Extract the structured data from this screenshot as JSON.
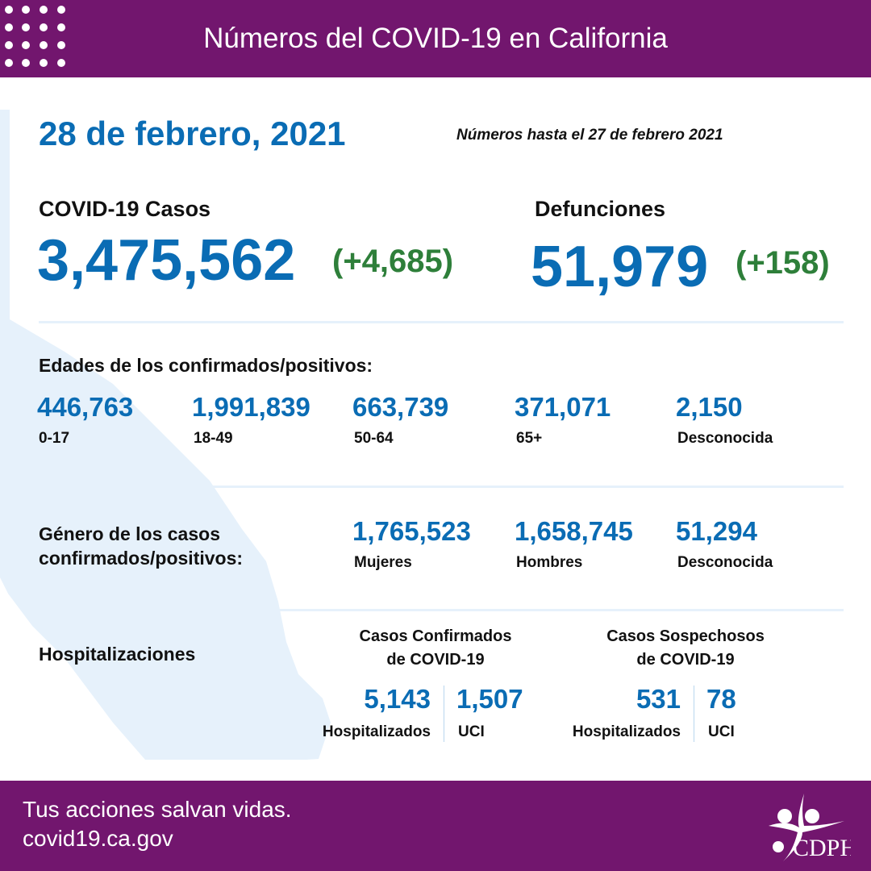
{
  "header": {
    "title": "Números del COVID-19 en California",
    "icon": "dot-grid-icon"
  },
  "date": "28 de febrero, 2021",
  "note": "Números hasta el 27 de febrero 2021",
  "cases": {
    "label": "COVID-19 Casos",
    "value": "3,475,562",
    "change": "(+4,685)"
  },
  "deaths": {
    "label": "Defunciones",
    "value": "51,979",
    "change": "(+158)"
  },
  "ages": {
    "heading": "Edades de los confirmados/positivos:",
    "items": [
      {
        "value": "446,763",
        "label": "0-17"
      },
      {
        "value": "1,991,839",
        "label": "18-49"
      },
      {
        "value": "663,739",
        "label": "50-64"
      },
      {
        "value": "371,071",
        "label": "65+"
      },
      {
        "value": "2,150",
        "label": "Desconocida"
      }
    ]
  },
  "gender": {
    "heading_line1": "Género de los casos",
    "heading_line2": "confirmados/positivos:",
    "items": [
      {
        "value": "1,765,523",
        "label": "Mujeres"
      },
      {
        "value": "1,658,745",
        "label": "Hombres"
      },
      {
        "value": "51,294",
        "label": "Desconocida"
      }
    ]
  },
  "hosp": {
    "heading": "Hospitalizaciones",
    "confirmed": {
      "title1": "Casos Confirmados",
      "title2": "de COVID-19",
      "hosp_value": "5,143",
      "hosp_label": "Hospitalizados",
      "icu_value": "1,507",
      "icu_label": "UCI"
    },
    "suspected": {
      "title1": "Casos Sospechosos",
      "title2": "de COVID-19",
      "hosp_value": "531",
      "hosp_label": "Hospitalizados",
      "icu_value": "78",
      "icu_label": "UCI"
    }
  },
  "footer": {
    "line1": "Tus acciones salvan vidas.",
    "line2": "covid19.ca.gov",
    "logo": "CDPH"
  },
  "colors": {
    "purple": "#72166e",
    "blue": "#0a6cb4",
    "green": "#2e7f3a",
    "map": "#e6f1fb"
  }
}
